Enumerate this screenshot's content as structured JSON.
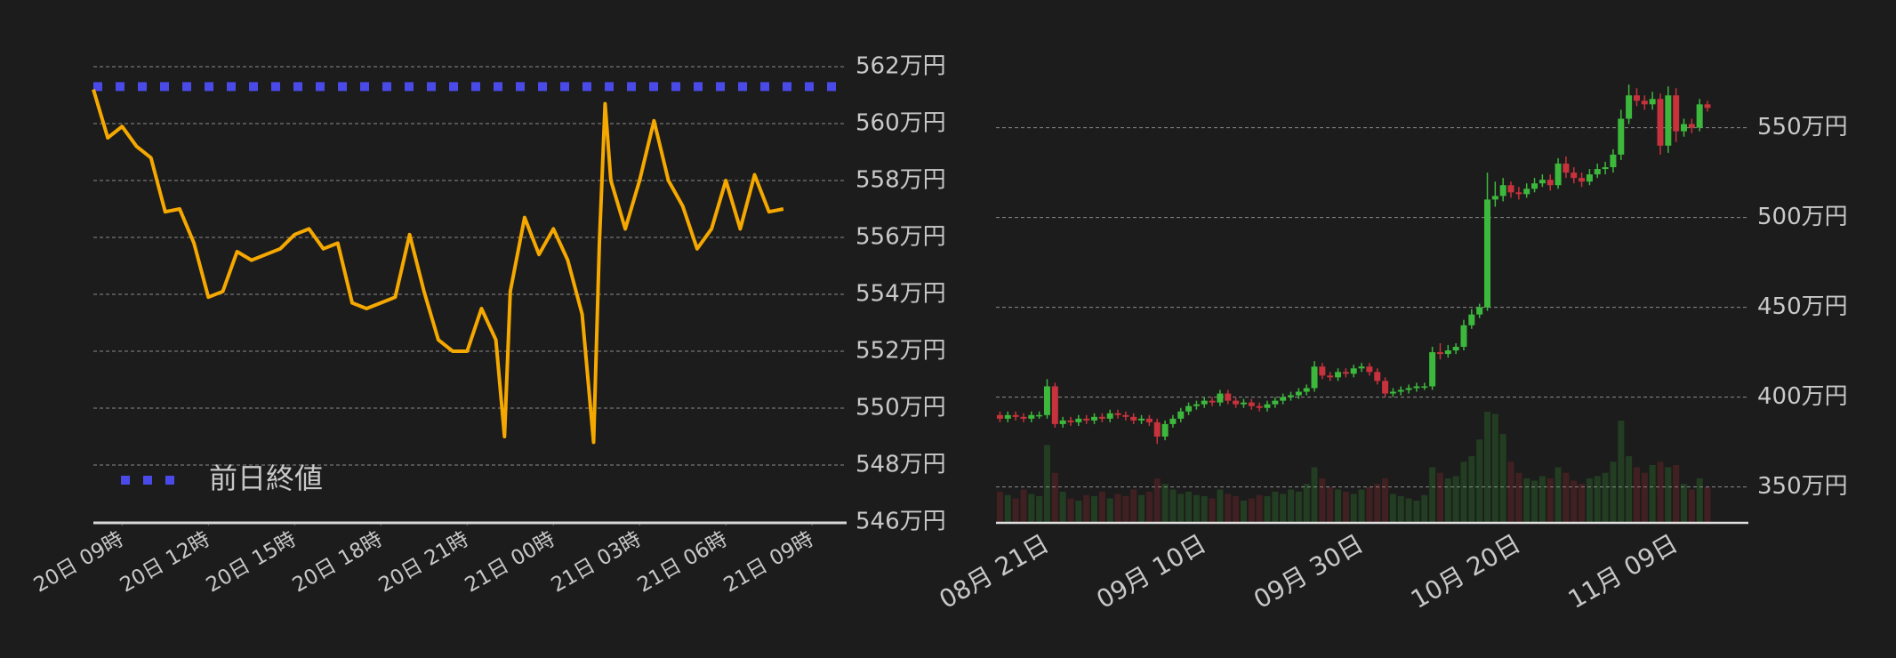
{
  "chart_data": [
    {
      "type": "line",
      "x": [
        8,
        8.5,
        9,
        9.5,
        10,
        10.5,
        11,
        11.5,
        12,
        12.5,
        13,
        13.5,
        14,
        14.5,
        15,
        15.5,
        16,
        16.5,
        17,
        17.5,
        18,
        18.5,
        19,
        19.5,
        20,
        20.5,
        21,
        21.5,
        22,
        22.3,
        22.5,
        23,
        23.5,
        24,
        24.5,
        25,
        25.4,
        25.6,
        25.8,
        26,
        26.5,
        27,
        27.5,
        28,
        28.5,
        29,
        29.5,
        30,
        30.5,
        31,
        31.5,
        32
      ],
      "series": [
        {
          "color": "#f5a800",
          "values": [
            561.2,
            559.5,
            559.9,
            559.2,
            558.8,
            556.9,
            557.0,
            555.8,
            553.9,
            554.1,
            555.5,
            555.2,
            555.4,
            555.6,
            556.1,
            556.3,
            555.6,
            555.8,
            553.7,
            553.5,
            553.7,
            553.9,
            556.1,
            554.1,
            552.4,
            552.0,
            552.0,
            553.5,
            552.4,
            549.0,
            554.1,
            556.7,
            555.4,
            556.3,
            555.2,
            553.3,
            548.8,
            555.8,
            560.7,
            558.0,
            556.3,
            558.0,
            560.1,
            558.0,
            557.1,
            555.6,
            556.3,
            558.0,
            556.3,
            558.2,
            556.9,
            557.0
          ]
        }
      ],
      "reference_line": {
        "name": "前日終値",
        "value": 561.3,
        "color": "#4a4ae8"
      },
      "xlim": [
        8,
        34.2
      ],
      "xticks": [
        {
          "value": 9,
          "label": "20日 09時"
        },
        {
          "value": 12,
          "label": "20日 12時"
        },
        {
          "value": 15,
          "label": "20日 15時"
        },
        {
          "value": 18,
          "label": "20日 18時"
        },
        {
          "value": 21,
          "label": "20日 21時"
        },
        {
          "value": 24,
          "label": "21日 00時"
        },
        {
          "value": 27,
          "label": "21日 03時"
        },
        {
          "value": 30,
          "label": "21日 06時"
        },
        {
          "value": 33,
          "label": "21日 09時"
        }
      ],
      "ylim": [
        546,
        562
      ],
      "yticks": [
        {
          "value": 546,
          "label": "546万円"
        },
        {
          "value": 548,
          "label": "548万円"
        },
        {
          "value": 550,
          "label": "550万円"
        },
        {
          "value": 552,
          "label": "552万円"
        },
        {
          "value": 554,
          "label": "554万円"
        },
        {
          "value": 556,
          "label": "556万円"
        },
        {
          "value": 558,
          "label": "558万円"
        },
        {
          "value": 560,
          "label": "560万円"
        },
        {
          "value": 562,
          "label": "562万円"
        }
      ],
      "grid": true
    },
    {
      "type": "candlestick",
      "categories": [
        null,
        null,
        null,
        null,
        null,
        null,
        "08月 21日",
        null,
        null,
        null,
        null,
        null,
        null,
        null,
        null,
        null,
        null,
        null,
        null,
        null,
        null,
        null,
        null,
        null,
        null,
        null,
        "09月 10日",
        null,
        null,
        null,
        null,
        null,
        null,
        null,
        null,
        null,
        null,
        null,
        null,
        null,
        null,
        null,
        null,
        null,
        null,
        null,
        "09月 30日",
        null,
        null,
        null,
        null,
        null,
        null,
        null,
        null,
        null,
        null,
        null,
        null,
        null,
        null,
        null,
        null,
        null,
        null,
        null,
        "10月 20日",
        null,
        null,
        null,
        null,
        null,
        null,
        null,
        null,
        null,
        null,
        null,
        null,
        null,
        null,
        null,
        null,
        null,
        null,
        null,
        "11月 09日",
        null,
        null,
        null,
        null
      ],
      "open": [
        390,
        388,
        390,
        389,
        388,
        390,
        390,
        406,
        385,
        387,
        386,
        388,
        387,
        389,
        388,
        391,
        390,
        389,
        387,
        388,
        386,
        378,
        385,
        388,
        392,
        395,
        396,
        398,
        397,
        402,
        398,
        396,
        397,
        395,
        394,
        396,
        398,
        400,
        401,
        403,
        405,
        417,
        412,
        411,
        414,
        413,
        416,
        417,
        414,
        409,
        402,
        403,
        404,
        405,
        406,
        406,
        425,
        424,
        426,
        428,
        440,
        446,
        450,
        510,
        512,
        518,
        514,
        513,
        516,
        519,
        521,
        518,
        530,
        525,
        522,
        520,
        524,
        527,
        528,
        535,
        555,
        568,
        565,
        563,
        566,
        540,
        568,
        548,
        552,
        550,
        563
      ],
      "high": [
        392,
        392,
        392,
        391,
        392,
        392,
        410,
        408,
        389,
        389,
        390,
        390,
        391,
        391,
        393,
        393,
        392,
        391,
        390,
        390,
        388,
        387,
        390,
        394,
        397,
        398,
        400,
        400,
        404,
        404,
        400,
        399,
        399,
        397,
        398,
        400,
        402,
        403,
        405,
        407,
        420,
        419,
        414,
        416,
        416,
        418,
        419,
        419,
        416,
        411,
        405,
        406,
        407,
        408,
        408,
        428,
        430,
        429,
        430,
        443,
        449,
        452,
        525,
        520,
        522,
        520,
        517,
        519,
        522,
        524,
        524,
        533,
        534,
        528,
        525,
        527,
        530,
        531,
        538,
        560,
        574,
        572,
        568,
        570,
        569,
        573,
        572,
        555,
        555,
        566,
        565
      ],
      "low": [
        386,
        386,
        387,
        386,
        386,
        388,
        388,
        383,
        383,
        384,
        384,
        385,
        385,
        386,
        386,
        388,
        387,
        385,
        385,
        384,
        374,
        376,
        383,
        386,
        390,
        393,
        394,
        395,
        395,
        396,
        394,
        394,
        393,
        392,
        392,
        394,
        396,
        398,
        399,
        401,
        403,
        410,
        409,
        409,
        411,
        411,
        414,
        412,
        407,
        400,
        400,
        401,
        402,
        403,
        404,
        404,
        421,
        422,
        424,
        426,
        438,
        444,
        448,
        506,
        509,
        511,
        510,
        511,
        514,
        517,
        515,
        516,
        522,
        519,
        517,
        518,
        522,
        524,
        525,
        532,
        552,
        562,
        560,
        560,
        535,
        536,
        542,
        545,
        547,
        548,
        559
      ],
      "close": [
        388,
        390,
        389,
        388,
        390,
        390,
        406,
        385,
        387,
        386,
        388,
        387,
        389,
        388,
        391,
        390,
        389,
        387,
        388,
        386,
        378,
        385,
        388,
        392,
        395,
        396,
        398,
        397,
        402,
        398,
        396,
        397,
        395,
        394,
        396,
        398,
        400,
        401,
        403,
        405,
        417,
        412,
        411,
        414,
        413,
        416,
        417,
        414,
        409,
        402,
        403,
        404,
        405,
        406,
        406,
        425,
        424,
        426,
        428,
        440,
        446,
        450,
        510,
        512,
        518,
        514,
        513,
        516,
        519,
        521,
        518,
        530,
        525,
        522,
        520,
        524,
        527,
        528,
        535,
        555,
        568,
        565,
        563,
        566,
        540,
        568,
        548,
        552,
        550,
        563,
        561
      ],
      "volume": [
        28,
        25,
        22,
        30,
        26,
        24,
        70,
        45,
        28,
        22,
        20,
        25,
        24,
        28,
        22,
        26,
        24,
        30,
        25,
        28,
        40,
        35,
        30,
        26,
        28,
        25,
        24,
        22,
        30,
        26,
        24,
        20,
        22,
        25,
        24,
        28,
        26,
        30,
        28,
        35,
        50,
        40,
        32,
        30,
        28,
        26,
        30,
        32,
        35,
        40,
        26,
        24,
        22,
        20,
        25,
        50,
        45,
        40,
        42,
        55,
        60,
        75,
        100,
        98,
        80,
        55,
        45,
        40,
        38,
        42,
        40,
        50,
        45,
        38,
        35,
        40,
        42,
        45,
        55,
        92,
        60,
        50,
        45,
        52,
        55,
        50,
        52,
        35,
        30,
        40,
        32
      ],
      "up_color": "#3cb83c",
      "down_color": "#c8323c",
      "ylim": [
        330,
        580
      ],
      "yticks": [
        {
          "value": 350,
          "label": "350万円"
        },
        {
          "value": 400,
          "label": "400万円"
        },
        {
          "value": 450,
          "label": "450万円"
        },
        {
          "value": 500,
          "label": "500万円"
        },
        {
          "value": 550,
          "label": "550万円"
        }
      ],
      "grid": true
    }
  ]
}
